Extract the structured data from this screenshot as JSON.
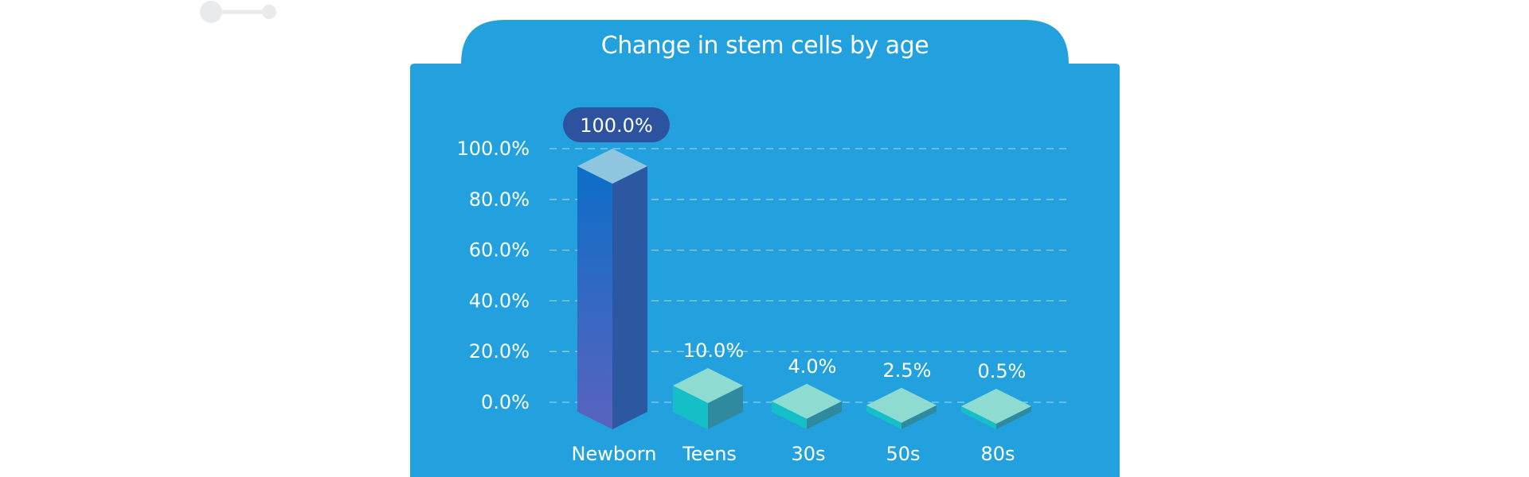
{
  "colors": {
    "panel": "#23a1de",
    "gridline": "#8fd0ef",
    "text": "#ffffff",
    "badge": "#2c52a0",
    "tall_top": "#8ec5df",
    "tall_front_top": "#0c6ec8",
    "tall_front_bottom": "#5a63be",
    "tall_side": "#2c58a2",
    "short_top": "#8edbd2",
    "short_front": "#15bfc8",
    "short_side": "#2f8aa0",
    "decor": "#e9eaec"
  },
  "chart_data": {
    "type": "bar",
    "title": "Change in stem cells by age",
    "categories": [
      "Newborn",
      "Teens",
      "30s",
      "50s",
      "80s"
    ],
    "values": [
      100.0,
      10.0,
      4.0,
      2.5,
      0.5
    ],
    "value_labels": [
      "100.0%",
      "10.0%",
      "4.0%",
      "2.5%",
      "0.5%"
    ],
    "highlight_index": 0,
    "ylim": [
      0,
      100
    ],
    "yticks": [
      0,
      20,
      40,
      60,
      80,
      100
    ],
    "ytick_labels": [
      "0.0%",
      "20.0%",
      "40.0%",
      "60.0%",
      "80.0%",
      "100.0%"
    ],
    "xlabel": "",
    "ylabel": "",
    "grid": true,
    "grid_style": "dashed",
    "legend": "none"
  }
}
